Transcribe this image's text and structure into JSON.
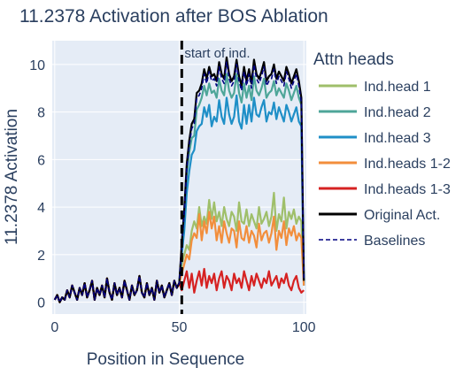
{
  "chart_data": {
    "type": "line",
    "title": "11.2378 Activation after BOS Ablation",
    "xlabel": "Position in Sequence",
    "ylabel": "11.2378 Activation",
    "xlim": [
      -1,
      101
    ],
    "ylim": [
      -0.5,
      11
    ],
    "x_ticks": [
      0,
      50,
      100
    ],
    "y_ticks": [
      0,
      2,
      4,
      6,
      8,
      10
    ],
    "grid": true,
    "legend_title": "Attn heads",
    "legend_position": "right",
    "annotation": {
      "text": "start of ind.",
      "x": 51
    },
    "series": [
      {
        "name": "Ind.head 1",
        "color": "#9fbf6a",
        "dash": "solid",
        "values": [
          0.1,
          0.3,
          0.0,
          0.2,
          0.1,
          0.5,
          0.2,
          0.7,
          0.4,
          0.1,
          0.6,
          0.3,
          0.8,
          0.2,
          0.5,
          0.9,
          0.1,
          0.6,
          0.3,
          0.7,
          0.2,
          1.0,
          0.4,
          0.1,
          0.8,
          0.3,
          0.6,
          0.2,
          0.9,
          0.5,
          0.1,
          0.7,
          0.3,
          0.5,
          1.1,
          0.4,
          0.2,
          0.8,
          0.3,
          0.6,
          0.1,
          0.9,
          0.4,
          0.7,
          0.2,
          0.5,
          0.8,
          0.3,
          0.9,
          0.6,
          0.8,
          1.6,
          2.0,
          2.4,
          2.2,
          3.0,
          3.4,
          3.1,
          4.0,
          3.2,
          3.6,
          3.3,
          4.3,
          3.5,
          4.2,
          3.4,
          3.8,
          3.2,
          4.0,
          3.5,
          3.2,
          3.8,
          3.6,
          3.0,
          4.2,
          3.4,
          3.3,
          3.9,
          3.2,
          3.7,
          3.4,
          3.1,
          4.0,
          3.3,
          3.5,
          3.8,
          3.2,
          3.6,
          4.6,
          3.0,
          3.7,
          3.4,
          4.4,
          3.1,
          3.8,
          3.5,
          3.9,
          3.3,
          3.6,
          3.4,
          0.9
        ]
      },
      {
        "name": "Ind.head 2",
        "color": "#4ea699",
        "dash": "solid",
        "values": [
          0.1,
          0.3,
          0.0,
          0.2,
          0.1,
          0.5,
          0.2,
          0.7,
          0.4,
          0.1,
          0.6,
          0.3,
          0.8,
          0.2,
          0.5,
          0.9,
          0.1,
          0.6,
          0.3,
          0.7,
          0.2,
          1.0,
          0.4,
          0.1,
          0.8,
          0.3,
          0.6,
          0.2,
          0.9,
          0.5,
          0.1,
          0.7,
          0.3,
          0.5,
          1.1,
          0.4,
          0.2,
          0.8,
          0.3,
          0.6,
          0.1,
          0.9,
          0.4,
          0.7,
          0.2,
          0.5,
          0.8,
          0.3,
          0.9,
          0.6,
          0.8,
          2.3,
          3.6,
          5.4,
          6.3,
          6.9,
          7.0,
          8.1,
          8.3,
          8.6,
          9.1,
          8.7,
          9.2,
          8.8,
          8.9,
          8.6,
          9.4,
          8.9,
          8.7,
          9.6,
          8.9,
          8.6,
          8.8,
          9.6,
          8.8,
          8.4,
          9.2,
          8.6,
          9.1,
          8.5,
          9.5,
          8.9,
          8.7,
          9.0,
          9.4,
          8.6,
          8.8,
          8.9,
          9.3,
          8.7,
          9.0,
          8.8,
          8.6,
          9.2,
          8.9,
          8.5,
          8.8,
          9.1,
          8.6,
          8.3,
          0.8
        ]
      },
      {
        "name": "Ind.head 3",
        "color": "#1f8fc7",
        "dash": "solid",
        "values": [
          0.1,
          0.3,
          0.0,
          0.2,
          0.1,
          0.5,
          0.2,
          0.7,
          0.4,
          0.1,
          0.6,
          0.3,
          0.8,
          0.2,
          0.5,
          0.9,
          0.1,
          0.6,
          0.3,
          0.7,
          0.2,
          1.0,
          0.4,
          0.1,
          0.8,
          0.3,
          0.6,
          0.2,
          0.9,
          0.5,
          0.1,
          0.7,
          0.3,
          0.5,
          1.1,
          0.4,
          0.2,
          0.8,
          0.3,
          0.6,
          0.1,
          0.9,
          0.4,
          0.7,
          0.2,
          0.5,
          0.8,
          0.3,
          0.9,
          0.6,
          0.8,
          2.0,
          3.0,
          4.6,
          5.5,
          6.2,
          6.4,
          7.2,
          7.4,
          7.5,
          8.2,
          7.8,
          8.3,
          7.4,
          7.8,
          7.6,
          8.5,
          7.8,
          7.5,
          8.6,
          7.9,
          7.5,
          7.8,
          8.7,
          7.6,
          7.3,
          8.3,
          7.5,
          8.3,
          7.6,
          8.6,
          7.9,
          7.8,
          8.2,
          8.5,
          7.6,
          8.0,
          7.9,
          8.4,
          7.7,
          8.2,
          7.9,
          7.6,
          8.3,
          8.0,
          7.6,
          7.9,
          8.2,
          7.6,
          7.4,
          0.7
        ]
      },
      {
        "name": "Ind.heads 1-2",
        "color": "#f28e3c",
        "dash": "solid",
        "values": [
          0.1,
          0.3,
          0.0,
          0.2,
          0.1,
          0.5,
          0.2,
          0.7,
          0.4,
          0.1,
          0.6,
          0.3,
          0.8,
          0.2,
          0.5,
          0.9,
          0.1,
          0.6,
          0.3,
          0.7,
          0.2,
          1.0,
          0.4,
          0.1,
          0.8,
          0.3,
          0.6,
          0.2,
          0.9,
          0.5,
          0.1,
          0.7,
          0.3,
          0.5,
          1.1,
          0.4,
          0.2,
          0.8,
          0.3,
          0.6,
          0.1,
          0.9,
          0.4,
          0.7,
          0.2,
          0.5,
          0.8,
          0.3,
          0.9,
          0.6,
          0.8,
          1.2,
          1.6,
          2.0,
          1.8,
          2.6,
          2.9,
          2.7,
          3.7,
          2.6,
          3.4,
          2.9,
          3.8,
          3.1,
          3.6,
          2.6,
          3.2,
          2.5,
          3.4,
          2.9,
          2.5,
          3.1,
          3.0,
          2.3,
          3.4,
          2.7,
          2.6,
          3.2,
          2.5,
          3.0,
          2.8,
          2.3,
          3.3,
          2.6,
          2.9,
          3.0,
          2.5,
          2.9,
          3.6,
          2.2,
          3.0,
          2.7,
          3.4,
          2.4,
          3.1,
          2.8,
          3.2,
          2.6,
          2.9,
          2.7,
          0.7
        ]
      },
      {
        "name": "Ind.heads 1-3",
        "color": "#d62222",
        "dash": "solid",
        "values": [
          0.1,
          0.3,
          0.0,
          0.2,
          0.1,
          0.5,
          0.2,
          0.7,
          0.4,
          0.1,
          0.6,
          0.3,
          0.8,
          0.2,
          0.5,
          0.9,
          0.1,
          0.6,
          0.3,
          0.7,
          0.2,
          1.0,
          0.4,
          0.1,
          0.8,
          0.3,
          0.6,
          0.2,
          0.9,
          0.5,
          0.1,
          0.7,
          0.3,
          0.5,
          1.1,
          0.4,
          0.2,
          0.8,
          0.3,
          0.6,
          0.1,
          0.9,
          0.4,
          0.7,
          0.2,
          0.5,
          0.8,
          0.3,
          0.9,
          0.6,
          0.8,
          0.5,
          0.9,
          1.3,
          0.6,
          1.2,
          0.4,
          0.9,
          1.3,
          0.7,
          1.4,
          0.6,
          1.1,
          0.8,
          1.2,
          0.5,
          1.0,
          1.3,
          0.6,
          1.1,
          0.9,
          0.5,
          1.2,
          0.8,
          1.0,
          0.6,
          1.3,
          0.9,
          0.5,
          1.1,
          0.7,
          1.2,
          0.9,
          0.6,
          1.0,
          0.8,
          1.3,
          0.7,
          0.9,
          1.1,
          0.6,
          1.0,
          0.8,
          1.2,
          0.7,
          0.5,
          0.9,
          1.1,
          0.6,
          0.4,
          0.5
        ]
      },
      {
        "name": "Original Act.",
        "color": "#000000",
        "dash": "solid",
        "values": [
          0.1,
          0.3,
          0.0,
          0.2,
          0.1,
          0.5,
          0.2,
          0.7,
          0.4,
          0.1,
          0.6,
          0.3,
          0.8,
          0.2,
          0.5,
          0.9,
          0.1,
          0.6,
          0.3,
          0.7,
          0.2,
          1.0,
          0.4,
          0.1,
          0.8,
          0.3,
          0.6,
          0.2,
          0.9,
          0.5,
          0.1,
          0.7,
          0.3,
          0.5,
          1.1,
          0.4,
          0.2,
          0.8,
          0.3,
          0.6,
          0.1,
          0.9,
          0.4,
          0.7,
          0.2,
          0.5,
          0.8,
          0.3,
          0.9,
          0.6,
          0.8,
          2.5,
          3.9,
          5.8,
          6.8,
          7.5,
          7.7,
          8.8,
          8.9,
          9.2,
          9.8,
          9.4,
          9.9,
          9.5,
          9.6,
          9.3,
          10.1,
          9.6,
          9.4,
          10.3,
          9.6,
          9.3,
          9.5,
          10.2,
          9.5,
          9.1,
          9.9,
          9.3,
          9.8,
          9.2,
          10.2,
          9.6,
          9.4,
          9.7,
          10.1,
          9.3,
          9.5,
          9.6,
          10.0,
          9.4,
          9.7,
          9.5,
          9.3,
          9.9,
          9.6,
          9.2,
          9.5,
          9.8,
          9.3,
          8.6,
          0.9
        ]
      },
      {
        "name": "Baselines",
        "color": "#000080",
        "dash": "dash",
        "values": [
          0.1,
          0.3,
          0.0,
          0.2,
          0.1,
          0.5,
          0.2,
          0.7,
          0.4,
          0.1,
          0.6,
          0.3,
          0.8,
          0.2,
          0.5,
          0.9,
          0.1,
          0.6,
          0.3,
          0.7,
          0.2,
          1.0,
          0.4,
          0.1,
          0.8,
          0.3,
          0.6,
          0.2,
          0.9,
          0.5,
          0.1,
          0.7,
          0.3,
          0.5,
          1.1,
          0.4,
          0.2,
          0.8,
          0.3,
          0.6,
          0.1,
          0.9,
          0.4,
          0.7,
          0.2,
          0.5,
          0.8,
          0.3,
          0.9,
          0.6,
          0.8,
          2.4,
          3.8,
          5.6,
          6.6,
          7.3,
          7.5,
          8.6,
          8.7,
          9.0,
          9.6,
          9.2,
          9.7,
          9.3,
          9.4,
          9.1,
          9.9,
          9.4,
          9.2,
          10.1,
          9.4,
          9.1,
          9.3,
          10.0,
          9.3,
          8.9,
          9.7,
          9.1,
          9.6,
          9.0,
          10.0,
          9.4,
          9.2,
          9.5,
          9.9,
          9.1,
          9.3,
          9.4,
          9.8,
          9.2,
          9.5,
          9.3,
          9.1,
          9.7,
          9.4,
          9.0,
          9.3,
          9.6,
          9.1,
          8.4,
          0.9
        ]
      }
    ]
  }
}
